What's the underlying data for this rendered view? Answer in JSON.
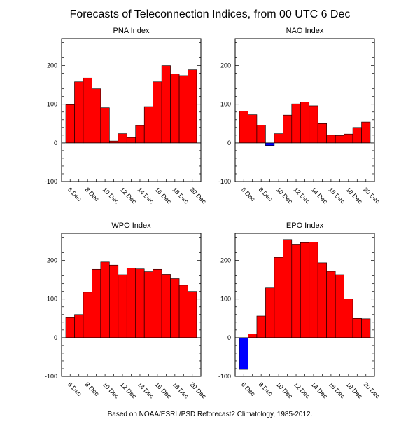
{
  "page": {
    "title": "Forecasts of Teleconnection Indices, from 00 UTC 6 Dec",
    "footer": "Based on NOAA/ESRL/PSD Reforecast2 Climatology, 1985-2012."
  },
  "colors": {
    "positive": "#ff0000",
    "negative": "#0000ff",
    "axis": "#000000"
  },
  "chart_data": [
    {
      "type": "bar",
      "title": "PNA Index",
      "categories": [
        "6 Dec",
        "7 Dec",
        "8 Dec",
        "9 Dec",
        "10 Dec",
        "11 Dec",
        "12 Dec",
        "13 Dec",
        "14 Dec",
        "15 Dec",
        "16 Dec",
        "17 Dec",
        "18 Dec",
        "19 Dec",
        "20 Dec"
      ],
      "x_tick_labels": [
        "6 Dec",
        "8 Dec",
        "10 Dec",
        "12 Dec",
        "14 Dec",
        "16 Dec",
        "18 Dec",
        "20 Dec"
      ],
      "values": [
        99,
        158,
        168,
        140,
        91,
        5,
        24,
        14,
        45,
        94,
        158,
        200,
        178,
        174,
        189
      ],
      "ylim": [
        -100,
        270
      ],
      "yticks": [
        -100,
        0,
        100,
        200
      ]
    },
    {
      "type": "bar",
      "title": "NAO Index",
      "categories": [
        "6 Dec",
        "7 Dec",
        "8 Dec",
        "9 Dec",
        "10 Dec",
        "11 Dec",
        "12 Dec",
        "13 Dec",
        "14 Dec",
        "15 Dec",
        "16 Dec",
        "17 Dec",
        "18 Dec",
        "19 Dec",
        "20 Dec"
      ],
      "x_tick_labels": [
        "6 Dec",
        "8 Dec",
        "10 Dec",
        "12 Dec",
        "14 Dec",
        "16 Dec",
        "18 Dec",
        "20 Dec"
      ],
      "values": [
        82,
        73,
        46,
        -7,
        24,
        72,
        101,
        106,
        96,
        50,
        20,
        19,
        23,
        40,
        54
      ],
      "ylim": [
        -100,
        270
      ],
      "yticks": [
        -100,
        0,
        100,
        200
      ]
    },
    {
      "type": "bar",
      "title": "WPO Index",
      "categories": [
        "6 Dec",
        "7 Dec",
        "8 Dec",
        "9 Dec",
        "10 Dec",
        "11 Dec",
        "12 Dec",
        "13 Dec",
        "14 Dec",
        "15 Dec",
        "16 Dec",
        "17 Dec",
        "18 Dec",
        "19 Dec",
        "20 Dec"
      ],
      "x_tick_labels": [
        "6 Dec",
        "8 Dec",
        "10 Dec",
        "12 Dec",
        "14 Dec",
        "16 Dec",
        "18 Dec",
        "20 Dec"
      ],
      "values": [
        52,
        60,
        118,
        177,
        196,
        188,
        163,
        180,
        178,
        171,
        177,
        164,
        153,
        136,
        120
      ],
      "ylim": [
        -100,
        270
      ],
      "yticks": [
        -100,
        0,
        100,
        200
      ]
    },
    {
      "type": "bar",
      "title": "EPO Index",
      "categories": [
        "6 Dec",
        "7 Dec",
        "8 Dec",
        "9 Dec",
        "10 Dec",
        "11 Dec",
        "12 Dec",
        "13 Dec",
        "14 Dec",
        "15 Dec",
        "16 Dec",
        "17 Dec",
        "18 Dec",
        "19 Dec",
        "20 Dec"
      ],
      "x_tick_labels": [
        "6 Dec",
        "8 Dec",
        "10 Dec",
        "12 Dec",
        "14 Dec",
        "16 Dec",
        "18 Dec",
        "20 Dec"
      ],
      "values": [
        -82,
        10,
        56,
        129,
        208,
        254,
        242,
        246,
        247,
        194,
        172,
        163,
        100,
        50,
        49
      ],
      "ylim": [
        -100,
        270
      ],
      "yticks": [
        -100,
        0,
        100,
        200
      ]
    }
  ]
}
